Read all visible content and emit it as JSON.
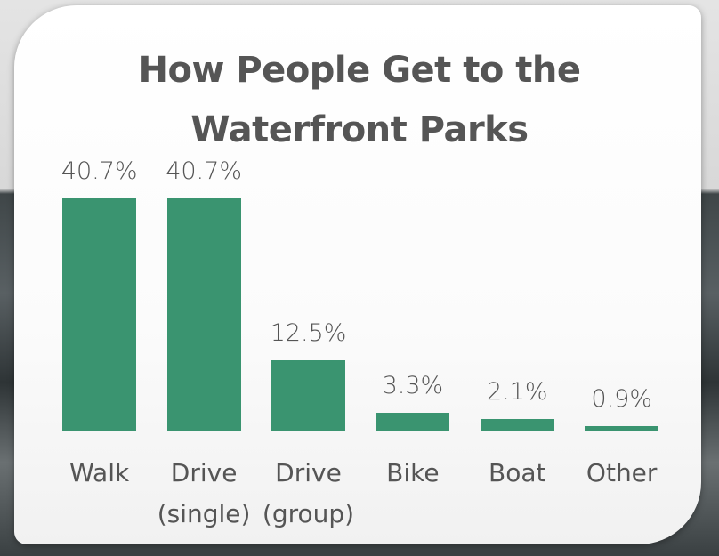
{
  "chart_data": {
    "type": "bar",
    "title": "How People Get to the Waterfront Parks",
    "categories": [
      "Walk",
      "Drive (single)",
      "Drive (group)",
      "Bike",
      "Boat",
      "Other"
    ],
    "values": [
      40.7,
      40.7,
      12.5,
      3.3,
      2.1,
      0.9
    ],
    "value_labels": [
      "40.7%",
      "40.7%",
      "12.5%",
      "3.3%",
      "2.1%",
      "0.9%"
    ],
    "color": "#3a9470"
  }
}
